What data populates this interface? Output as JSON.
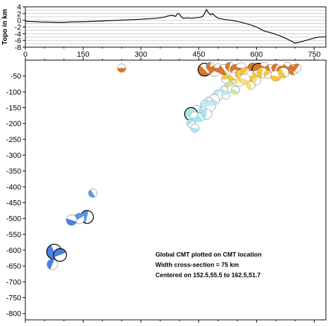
{
  "chart_data": [
    {
      "type": "line",
      "ylabel": "Topo in km",
      "xlim": [
        0,
        780
      ],
      "ylim": [
        -8,
        4
      ],
      "y_ticks": [
        4,
        2,
        0,
        -2,
        -4,
        -6,
        -8
      ],
      "x_ticks": [
        0,
        150,
        300,
        450,
        600,
        750
      ],
      "grid": true,
      "series": [
        {
          "x": [
            0,
            40,
            80,
            100,
            120,
            160,
            200,
            260,
            300,
            340,
            360,
            370,
            380,
            390,
            395,
            400,
            405,
            410,
            420,
            430,
            440,
            450,
            460,
            465,
            470,
            475,
            480,
            485,
            490,
            500,
            520,
            540,
            560,
            580,
            600,
            620,
            640,
            660,
            680,
            700,
            720,
            740,
            760,
            780
          ],
          "y": [
            -0.3,
            -0.5,
            -0.6,
            -0.6,
            -0.5,
            -0.4,
            -0.2,
            0.1,
            0.3,
            0.6,
            0.9,
            1.3,
            1.5,
            1.2,
            2.0,
            1.8,
            1.0,
            0.6,
            0.7,
            0.6,
            0.7,
            0.8,
            1.1,
            2.0,
            3.2,
            2.3,
            1.6,
            2.0,
            1.5,
            0.6,
            0.2,
            -0.1,
            -0.6,
            -1.2,
            -2.0,
            -3.2,
            -3.8,
            -4.6,
            -5.6,
            -6.8,
            -6.3,
            -5.6,
            -5.0,
            -4.9
          ]
        }
      ]
    },
    {
      "type": "scatter",
      "xlim": [
        0,
        780
      ],
      "ylim": [
        -820,
        0
      ],
      "y_ticks": [
        -50,
        -100,
        -150,
        -200,
        -250,
        -300,
        -350,
        -400,
        -450,
        -500,
        -550,
        -600,
        -650,
        -700,
        -750,
        -800
      ],
      "grid": false,
      "series": [
        {
          "x": [
            250,
            465,
            480,
            490,
            500,
            515,
            530,
            545,
            560,
            575,
            590,
            605,
            620,
            635,
            650,
            665,
            680,
            695,
            705,
            520,
            540,
            555,
            570,
            585,
            600,
            615,
            630,
            650,
            670,
            540,
            555,
            570,
            585,
            600,
            530,
            545,
            515,
            500,
            520,
            490,
            475,
            465,
            480,
            445,
            460,
            430,
            440,
            455,
            470,
            430,
            440,
            175,
            160,
            140,
            120,
            75,
            70,
            90
          ],
          "y": [
            -25,
            -30,
            -20,
            -35,
            -25,
            -30,
            -20,
            -30,
            -25,
            -35,
            -25,
            -30,
            -20,
            -30,
            -25,
            -35,
            -20,
            -30,
            -25,
            -60,
            -55,
            -45,
            -40,
            -50,
            -45,
            -40,
            -45,
            -50,
            -40,
            -75,
            -70,
            -60,
            -80,
            -65,
            -85,
            -95,
            -95,
            -110,
            -110,
            -125,
            -130,
            -140,
            -145,
            -160,
            -160,
            -170,
            -180,
            -180,
            -170,
            -200,
            -215,
            -420,
            -495,
            -500,
            -505,
            -605,
            -645,
            -615
          ],
          "mag": [
            2,
            4,
            2,
            3,
            2,
            3,
            2,
            3,
            3,
            2,
            3,
            4,
            2,
            3,
            2,
            3,
            2,
            3,
            2,
            2,
            3,
            2,
            3,
            3,
            2,
            3,
            2,
            3,
            3,
            2,
            2,
            3,
            2,
            2,
            3,
            2,
            2,
            3,
            2,
            3,
            2,
            2,
            3,
            3,
            2,
            4,
            3,
            2,
            3,
            2,
            2,
            2,
            4,
            3,
            3,
            5,
            3,
            4
          ],
          "depth_color": [
            "#d9782a",
            "#d9782a",
            "#d9782a",
            "#d9782a",
            "#d9782a",
            "#d9782a",
            "#d9782a",
            "#d9782a",
            "#d9782a",
            "#d9782a",
            "#d9782a",
            "#d9782a",
            "#d9782a",
            "#d9782a",
            "#d9782a",
            "#d9782a",
            "#d9782a",
            "#d9782a",
            "#d9782a",
            "#f2c744",
            "#f2c744",
            "#f2c744",
            "#f2c744",
            "#f2c744",
            "#f2c744",
            "#f2c744",
            "#f2c744",
            "#f2c744",
            "#f2c744",
            "#f7e07a",
            "#f7e07a",
            "#f7e07a",
            "#f7e07a",
            "#f7e07a",
            "#c7e9a0",
            "#c7e9a0",
            "#bfeaf2",
            "#bfeaf2",
            "#bfeaf2",
            "#bfeaf2",
            "#bfeaf2",
            "#bfeaf2",
            "#bfeaf2",
            "#a9e6f0",
            "#a9e6f0",
            "#a9e6f0",
            "#a9e6f0",
            "#a9e6f0",
            "#a9e6f0",
            "#a9e6f0",
            "#a9e6f0",
            "#5b96e8",
            "#5b96e8",
            "#5b96e8",
            "#4a82e0",
            "#4a82e0",
            "#4a82e0",
            "#4a82e0"
          ]
        }
      ],
      "annotations": [
        "Global CMT plotted on CMT location",
        "Width cross-section = 75 km",
        "Centered on 152.5,55.5 to 162.5,51.7"
      ]
    }
  ]
}
